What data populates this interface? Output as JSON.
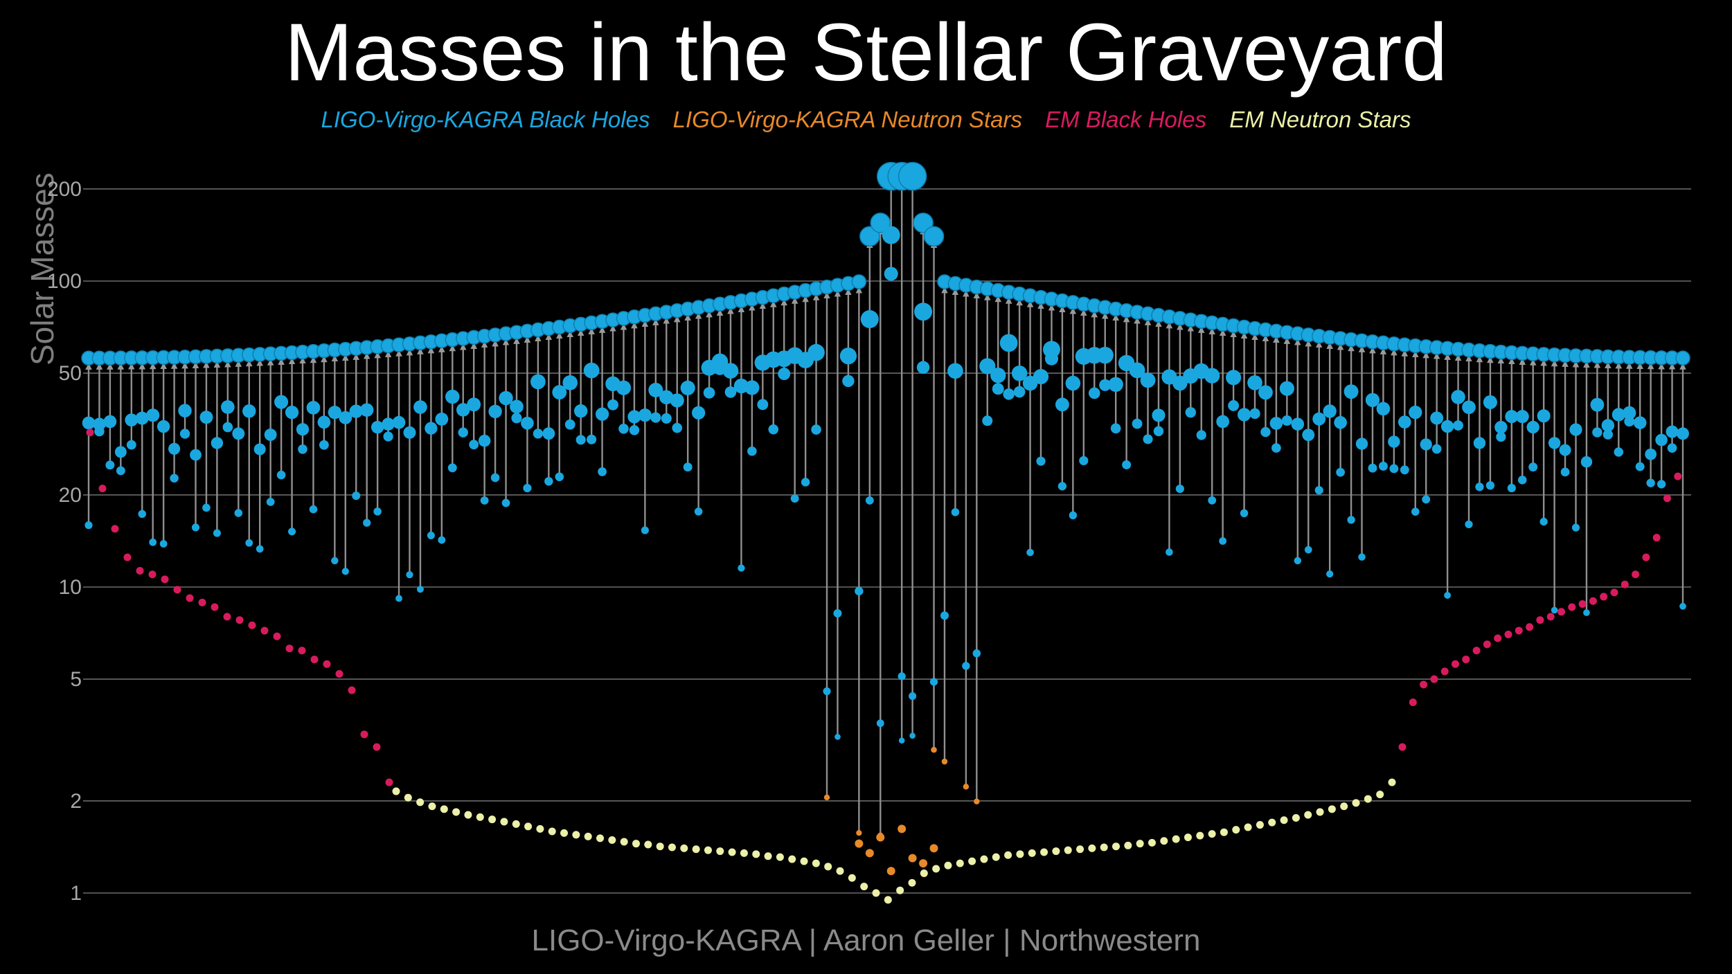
{
  "title": "Masses in the Stellar Graveyard",
  "legend": [
    {
      "label": "LIGO-Virgo-KAGRA Black Holes",
      "color": "#1aa7e0"
    },
    {
      "label": "LIGO-Virgo-KAGRA Neutron Stars",
      "color": "#e8892a"
    },
    {
      "label": "EM Black Holes",
      "color": "#d81b5e"
    },
    {
      "label": "EM Neutron Stars",
      "color": "#ecf0a8"
    }
  ],
  "credit": "LIGO-Virgo-KAGRA | Aaron Geller | Northwestern",
  "chart_data": {
    "type": "scatter",
    "title": "Masses in the Stellar Graveyard",
    "ylabel": "Solar Masses",
    "xlabel": "",
    "yscale": "log",
    "ylim": [
      0.9,
      260
    ],
    "yticks": [
      1,
      2,
      5,
      10,
      20,
      50,
      100,
      200
    ],
    "grid": "horizontal",
    "legend_position": "top",
    "series": [
      {
        "name": "EM Black Holes",
        "values": [
          32,
          21,
          15.5,
          12.5,
          11.3,
          11.0,
          10.6,
          9.8,
          9.2,
          8.9,
          8.6,
          8.0,
          7.8,
          7.5,
          7.2,
          6.9,
          6.3,
          6.2,
          5.8,
          5.6,
          5.2,
          4.6,
          3.3,
          3.0,
          2.3,
          3.0,
          4.2,
          4.8,
          5.0,
          5.3,
          5.6,
          5.8,
          6.2,
          6.5,
          6.8,
          7.0,
          7.2,
          7.4,
          7.8,
          8.0,
          8.3,
          8.6,
          8.8,
          9.0,
          9.3,
          9.6,
          10.2,
          11.0,
          12.5,
          14.5,
          19.5,
          23
        ]
      },
      {
        "name": "EM Neutron Stars",
        "values": [
          2.15,
          2.05,
          1.98,
          1.92,
          1.88,
          1.84,
          1.8,
          1.77,
          1.74,
          1.71,
          1.68,
          1.65,
          1.62,
          1.59,
          1.57,
          1.55,
          1.53,
          1.51,
          1.49,
          1.47,
          1.45,
          1.44,
          1.42,
          1.41,
          1.4,
          1.39,
          1.38,
          1.37,
          1.36,
          1.35,
          1.34,
          1.32,
          1.31,
          1.29,
          1.27,
          1.25,
          1.22,
          1.18,
          1.12,
          1.05,
          1.0,
          0.95,
          1.02,
          1.08,
          1.16,
          1.2,
          1.23,
          1.25,
          1.27,
          1.29,
          1.31,
          1.33,
          1.34,
          1.35,
          1.36,
          1.37,
          1.38,
          1.39,
          1.4,
          1.41,
          1.42,
          1.43,
          1.45,
          1.46,
          1.48,
          1.5,
          1.52,
          1.54,
          1.56,
          1.58,
          1.61,
          1.64,
          1.67,
          1.7,
          1.73,
          1.76,
          1.8,
          1.84,
          1.88,
          1.92,
          1.97,
          2.03,
          2.1,
          2.3
        ]
      },
      {
        "name": "LIGO-Virgo-KAGRA Neutron Stars",
        "values": [
          1.45,
          1.35,
          1.52,
          1.18,
          1.62,
          1.3,
          1.25,
          1.4
        ]
      },
      {
        "name": "LIGO-Virgo-KAGRA Black Holes",
        "count_envelope": 150,
        "envelope_min": 55,
        "envelope_peak": 220,
        "remnant_range": [
          2.6,
          220
        ],
        "component_range": [
          1.3,
          150
        ]
      }
    ]
  }
}
